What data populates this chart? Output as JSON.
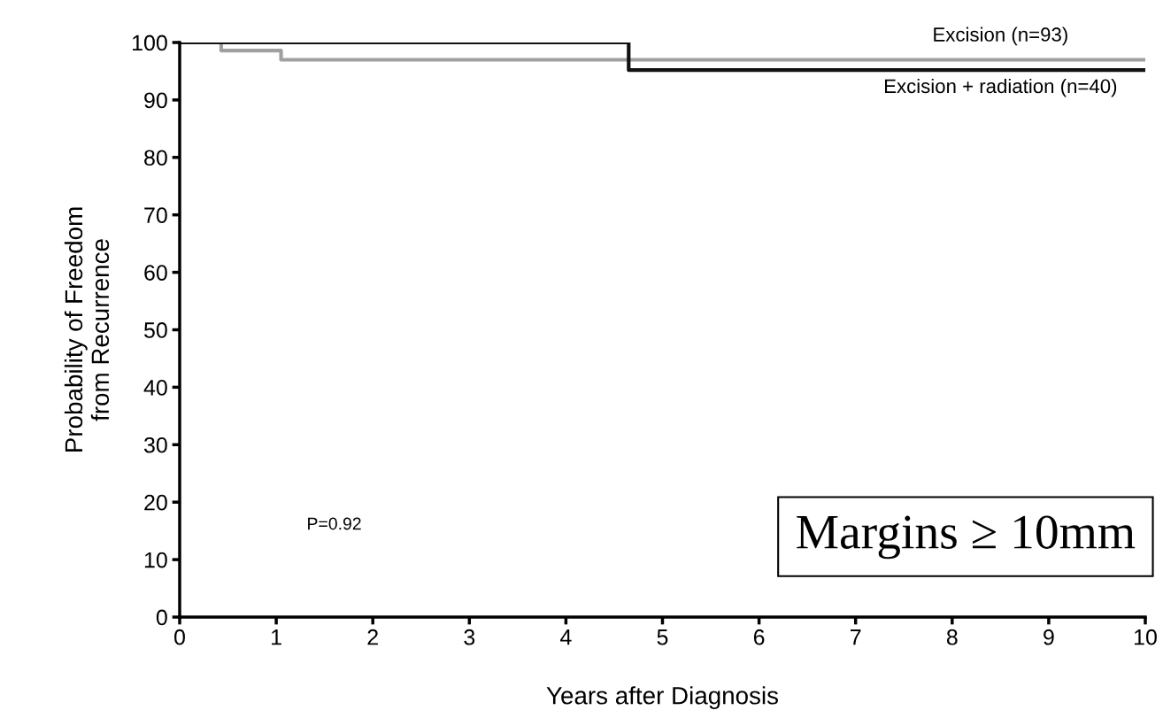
{
  "chart_data": {
    "type": "step",
    "xlabel": "Years after Diagnosis",
    "ylabel": "Probability of Freedom\nfrom Recurrence",
    "xlim": [
      0,
      10
    ],
    "ylim": [
      0,
      100
    ],
    "xticks": [
      0,
      1,
      2,
      3,
      4,
      5,
      6,
      7,
      8,
      9,
      10
    ],
    "yticks": [
      0,
      10,
      20,
      30,
      40,
      50,
      60,
      70,
      80,
      90,
      100
    ],
    "grid": false,
    "legend": false,
    "series": [
      {
        "name": "Excision (n=93)",
        "color": "#a0a0a0",
        "x": [
          0,
          0.43,
          1.05,
          10
        ],
        "values": [
          100,
          98.6,
          97,
          97
        ]
      },
      {
        "name": "Excision + radiation (n=40)",
        "color": "#111111",
        "x": [
          0,
          4.65,
          10
        ],
        "values": [
          100,
          95.2,
          95.2
        ]
      }
    ],
    "annotations": [
      "P=0.92",
      "Margins ≥ 10mm"
    ]
  }
}
